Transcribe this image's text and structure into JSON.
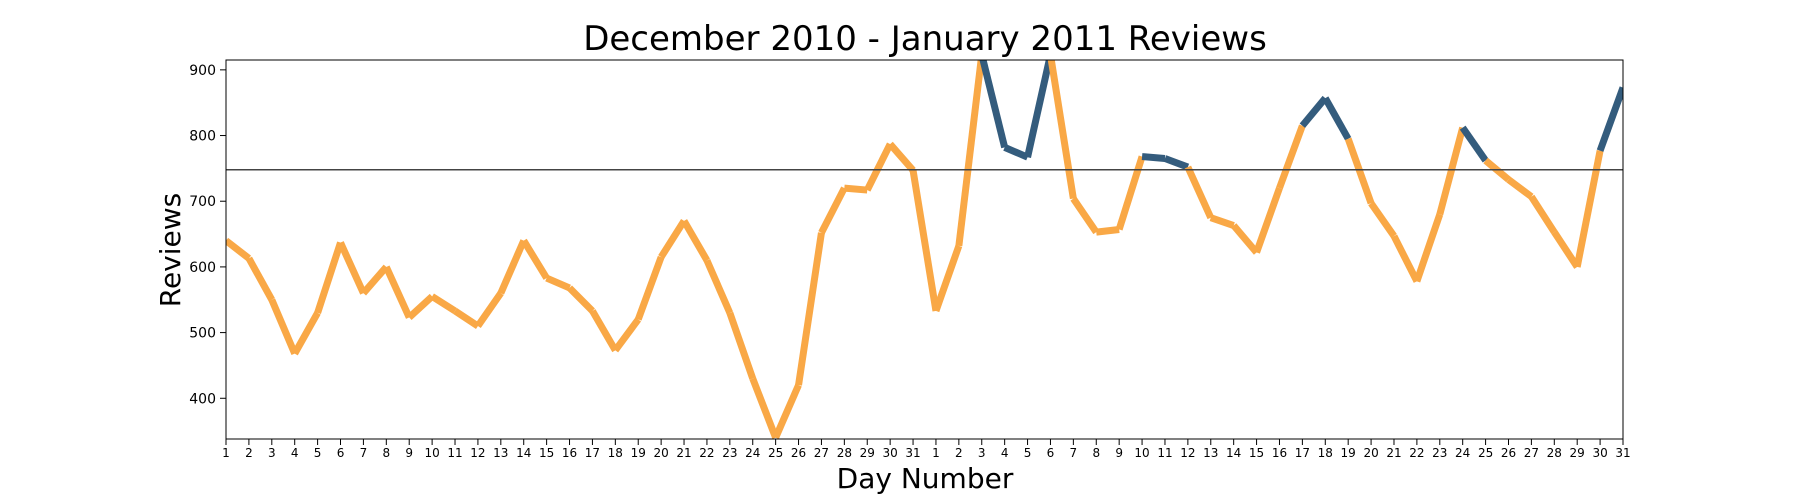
{
  "chart_data": {
    "type": "line",
    "title": "December 2010 - January 2011 Reviews",
    "xlabel": "Day Number",
    "ylabel": "Reviews",
    "ylim": [
      338,
      915
    ],
    "yticks": [
      400,
      500,
      600,
      700,
      800,
      900
    ],
    "x_tick_labels": [
      "1",
      "2",
      "3",
      "4",
      "5",
      "6",
      "7",
      "8",
      "9",
      "10",
      "11",
      "12",
      "13",
      "14",
      "15",
      "16",
      "17",
      "18",
      "19",
      "20",
      "21",
      "22",
      "23",
      "24",
      "25",
      "26",
      "27",
      "28",
      "29",
      "30",
      "31",
      "1",
      "2",
      "3",
      "4",
      "5",
      "6",
      "7",
      "8",
      "9",
      "10",
      "11",
      "12",
      "13",
      "14",
      "15",
      "16",
      "17",
      "18",
      "19",
      "20",
      "21",
      "22",
      "23",
      "24",
      "25",
      "26",
      "27",
      "28",
      "29",
      "30",
      "31"
    ],
    "values": [
      640,
      613,
      550,
      468,
      530,
      637,
      560,
      600,
      523,
      555,
      533,
      510,
      560,
      640,
      583,
      568,
      533,
      473,
      520,
      615,
      670,
      610,
      530,
      430,
      340,
      420,
      652,
      720,
      717,
      787,
      747,
      533,
      632,
      923,
      782,
      767,
      923,
      704,
      653,
      657,
      768,
      765,
      752,
      675,
      663,
      622,
      720,
      815,
      857,
      795,
      697,
      647,
      578,
      680,
      812,
      762,
      733,
      707,
      653,
      600,
      777,
      873
    ],
    "reference_line": 748,
    "colors": {
      "below": "#F9A846",
      "above": "#345C7D",
      "reference": "#444444",
      "axes": "#000000"
    }
  }
}
